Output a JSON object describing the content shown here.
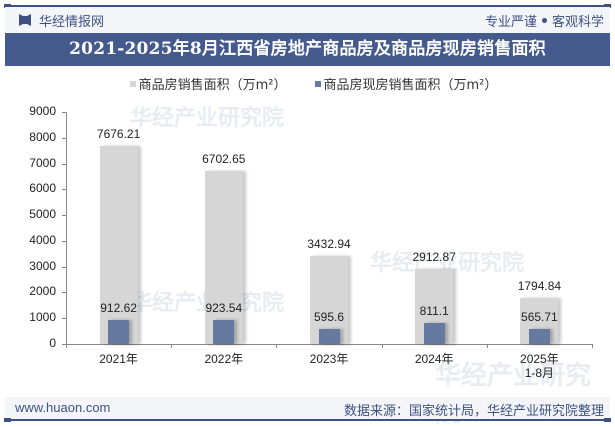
{
  "header": {
    "brand_name": "华经情报网",
    "slogan_left": "专业严谨",
    "slogan_right": "客观科学",
    "title": "2021-2025年8月江西省房地产商品房及商品房现房销售面积"
  },
  "legend": [
    {
      "label": "商品房销售面积（万m²）",
      "color": "#d6d6d6"
    },
    {
      "label": "商品房现房销售面积（万m²）",
      "color": "#66799f"
    }
  ],
  "footer": {
    "url": "www.huaon.com",
    "source": "数据来源：国家统计局，华经产业研究院整理"
  },
  "watermark": {
    "text": "华经产业研究院",
    "url": "www.huaon.com"
  },
  "colors": {
    "navy": "#44598c",
    "accent_line": "#3e5183",
    "bar_total": "#d6d6d6",
    "bar_spot": "#66799f"
  },
  "chart_data": {
    "type": "bar",
    "title": "2021-2025年8月江西省房地产商品房及商品房现房销售面积",
    "categories": [
      "2021年",
      "2022年",
      "2023年",
      "2024年",
      "2025年\n1-8月"
    ],
    "series": [
      {
        "name": "商品房销售面积（万m²）",
        "values": [
          7676.21,
          6702.65,
          3432.94,
          2912.87,
          1794.84
        ]
      },
      {
        "name": "商品房现房销售面积（万m²）",
        "values": [
          912.62,
          923.54,
          595.6,
          811.1,
          565.71
        ]
      }
    ],
    "xlabel": "",
    "ylabel": "",
    "ylim": [
      0,
      9000
    ],
    "yticks": [
      0,
      1000,
      2000,
      3000,
      4000,
      5000,
      6000,
      7000,
      8000,
      9000
    ],
    "grid": false,
    "legend_position": "top",
    "bar_mode": "overlay"
  }
}
